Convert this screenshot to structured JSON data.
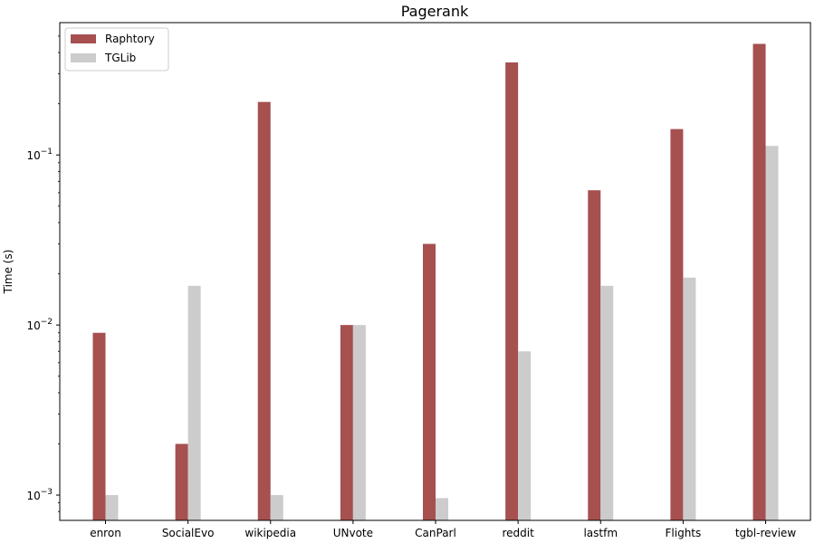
{
  "chart_data": {
    "type": "bar",
    "title": "Pagerank",
    "xlabel": "",
    "ylabel": "Time (s)",
    "yscale": "log",
    "ylim": [
      0.00071,
      0.6
    ],
    "yticks": [
      {
        "value": 0.001,
        "base": "10",
        "exp": "−3"
      },
      {
        "value": 0.01,
        "base": "10",
        "exp": "−2"
      },
      {
        "value": 0.1,
        "base": "10",
        "exp": "−1"
      }
    ],
    "categories": [
      "enron",
      "SocialEvo",
      "wikipedia",
      "UNvote",
      "CanParl",
      "reddit",
      "lastfm",
      "Flights",
      "tgbl-review"
    ],
    "series": [
      {
        "name": "Raphtory",
        "color": "#a65050",
        "values": [
          0.009,
          0.002,
          0.205,
          0.01,
          0.03,
          0.35,
          0.062,
          0.142,
          0.45
        ]
      },
      {
        "name": "TGLib",
        "color": "#cccccc",
        "values": [
          0.001,
          0.017,
          0.001,
          0.01,
          0.00096,
          0.007,
          0.017,
          0.019,
          0.113
        ]
      }
    ],
    "grid": false,
    "legend": "top-left"
  }
}
